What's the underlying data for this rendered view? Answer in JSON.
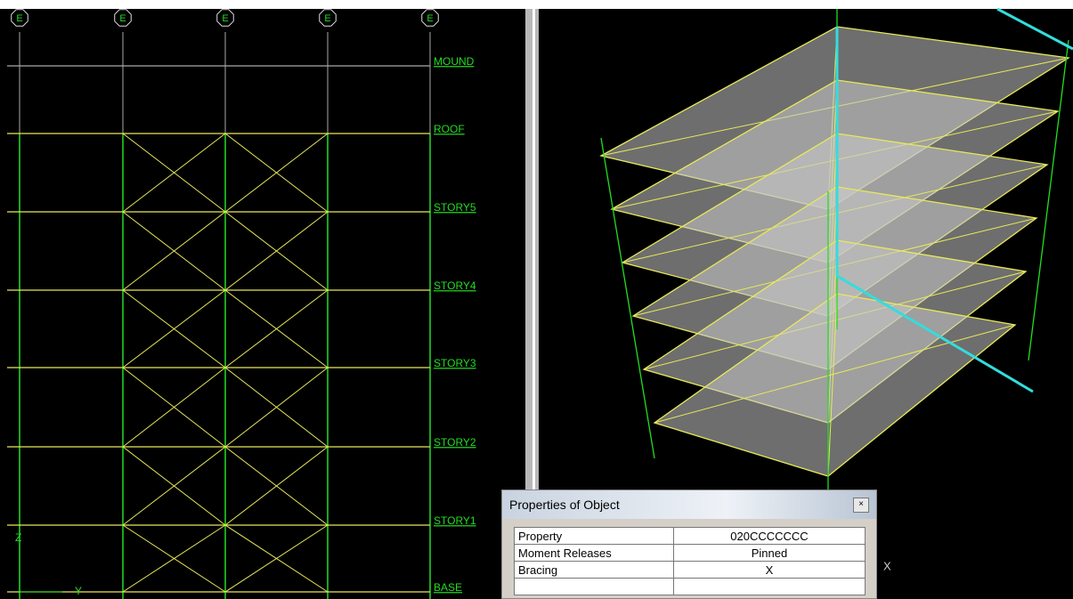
{
  "left_view": {
    "grid_bubbles": [
      "E",
      "E",
      "E",
      "E",
      "E"
    ],
    "levels": [
      "MOUND",
      "ROOF",
      "STORY5",
      "STORY4",
      "STORY3",
      "STORY2",
      "STORY1",
      "BASE"
    ],
    "axis_labels": {
      "z": "Z",
      "y": "Y"
    }
  },
  "right_view": {
    "axis_label": "X"
  },
  "dialog": {
    "title": "Properties of Object",
    "rows": [
      [
        "Property",
        "020CCCCCCC"
      ],
      [
        "Moment Releases",
        "Pinned"
      ],
      [
        "Bracing",
        "X"
      ]
    ]
  }
}
